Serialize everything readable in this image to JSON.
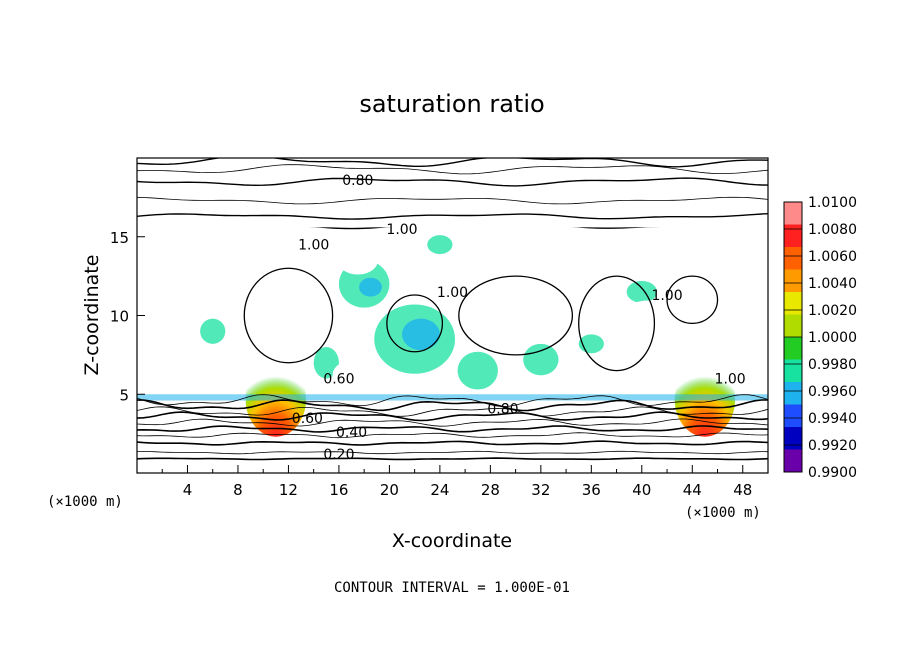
{
  "chart_data": {
    "type": "heatmap",
    "title": "saturation ratio",
    "xlabel": "X-coordinate",
    "ylabel": "Z-coordinate",
    "x_unit_left": "(×1000 m)",
    "x_unit_right": "(×1000 m)",
    "xlim": [
      0,
      50
    ],
    "ylim": [
      0,
      20
    ],
    "xticks": [
      4,
      8,
      12,
      16,
      20,
      24,
      28,
      32,
      36,
      40,
      44,
      48
    ],
    "yticks": [
      5,
      10,
      15
    ],
    "colorbar": {
      "levels": [
        1.01,
        1.008,
        1.006,
        1.004,
        1.002,
        1.0,
        0.998,
        0.996,
        0.994,
        0.992,
        0.99
      ],
      "labels": [
        "1.0100",
        "1.0080",
        "1.0060",
        "1.0040",
        "1.0020",
        "1.0000",
        "0.9980",
        "0.9960",
        "0.9940",
        "0.9920",
        "0.9900"
      ],
      "colors": [
        "#ff8a8a",
        "#ff2020",
        "#ff6000",
        "#ff9a00",
        "#e8e800",
        "#b0dc00",
        "#22cc22",
        "#18e2a0",
        "#1eb2ee",
        "#1e4cff",
        "#0000c0",
        "#6a00aa"
      ]
    },
    "contours": [
      {
        "label": "0.20",
        "z": 1.3
      },
      {
        "label": "0.40",
        "z": 2.8
      },
      {
        "label": "0.60",
        "z": 3.6
      },
      {
        "label": "0.80",
        "z": 4.3
      },
      {
        "label": "1.00",
        "z": 16.0
      },
      {
        "label": "0.80",
        "z": 18.5
      }
    ],
    "inline_labels": [
      "0.80",
      "1.00",
      "1.00",
      "1.00",
      "1.00",
      "1.00",
      "0.60",
      "0.40",
      "0.20",
      "0.80",
      "0.60"
    ],
    "hotspots_x": [
      11,
      45
    ],
    "footer": "CONTOUR INTERVAL = 1.000E-01",
    "colors": {
      "field_main": "#22cc22",
      "field_subsat": "#18e2a0",
      "field_low": "#1eb2ee",
      "hot_core": "#ff2020",
      "hot_edge": "#ff9a00"
    }
  }
}
